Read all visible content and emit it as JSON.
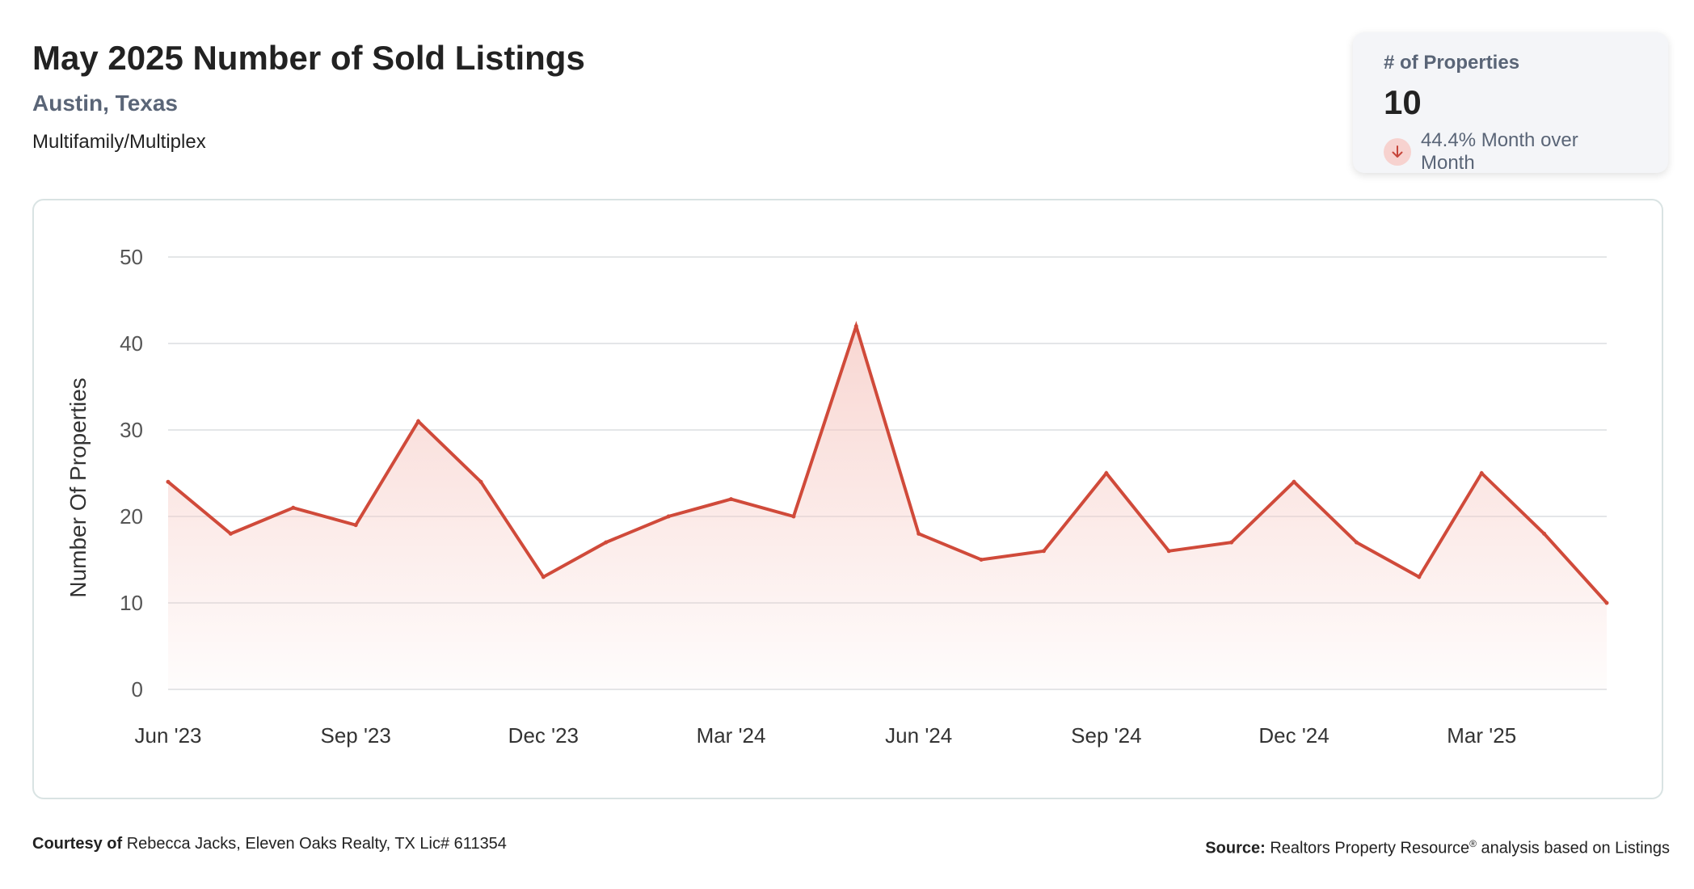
{
  "header": {
    "title": "May 2025 Number of Sold Listings",
    "subtitle": "Austin, Texas",
    "category": "Multifamily/Multiplex"
  },
  "stat_card": {
    "label": "# of Properties",
    "value": "10",
    "change": "44.4% Month over Month",
    "change_icon": "arrow-down-icon",
    "change_direction": "down"
  },
  "colors": {
    "line": "#d04a3a",
    "fill_top": "#f6c9c3",
    "grid": "#e4e6e8",
    "tick_text": "#555555",
    "change_badge": "#f7d2cf"
  },
  "footer": {
    "courtesy_label": "Courtesy of",
    "courtesy_text": "Rebecca Jacks, Eleven Oaks Realty, TX Lic# 611354",
    "source_label": "Source:",
    "source_text_before": "Realtors Property Resource",
    "source_mark": "®",
    "source_text_after": "analysis based on Listings"
  },
  "chart_data": {
    "type": "area",
    "title": "",
    "xlabel": "",
    "ylabel": "Number Of Properties",
    "ylim": [
      0,
      50
    ],
    "yticks": [
      0,
      10,
      20,
      30,
      40,
      50
    ],
    "grid": true,
    "legend": "none",
    "x": [
      "Jun '23",
      "Jul '23",
      "Aug '23",
      "Sep '23",
      "Oct '23",
      "Nov '23",
      "Dec '23",
      "Jan '24",
      "Feb '24",
      "Mar '24",
      "Apr '24",
      "May '24",
      "Jun '24",
      "Jul '24",
      "Aug '24",
      "Sep '24",
      "Oct '24",
      "Nov '24",
      "Dec '24",
      "Jan '25",
      "Feb '25",
      "Mar '25",
      "Apr '25",
      "May '25"
    ],
    "xtick_labels": [
      "Jun '23",
      "Sep '23",
      "Dec '23",
      "Mar '24",
      "Jun '24",
      "Sep '24",
      "Dec '24",
      "Mar '25"
    ],
    "series": [
      {
        "values": [
          24,
          18,
          21,
          19,
          31,
          24,
          13,
          17,
          20,
          22,
          20,
          42,
          18,
          15,
          16,
          25,
          16,
          17,
          24,
          17,
          13,
          25,
          18,
          10
        ]
      }
    ]
  }
}
